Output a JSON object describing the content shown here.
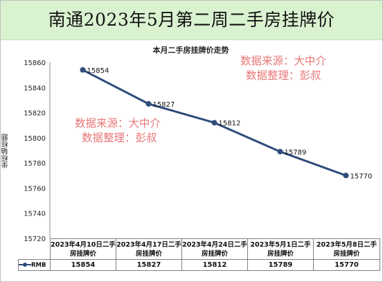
{
  "banner": {
    "title": "南通2023年5月第二周二手房挂牌价"
  },
  "watermark": {
    "line1": "数据来源：大中介",
    "line2": "数据整理：彭叔"
  },
  "chart_data": {
    "type": "line",
    "title": "本月二手房挂牌价走势",
    "ylabel": "坐标轴标题",
    "xlabel": "",
    "ylim": [
      15720,
      15860
    ],
    "ytick_step": 20,
    "yticks": [
      "15860",
      "15840",
      "15820",
      "15800",
      "15780",
      "15760",
      "15740",
      "15720"
    ],
    "grid": false,
    "legend": "data-table",
    "categories": [
      "2023年4月10日二手房挂牌价",
      "2023年4月17日二手房挂牌价",
      "2023年4月24日二手房挂牌价",
      "2023年5月1日二手房挂牌价",
      "2023年5月8日二手房挂牌价"
    ],
    "series": [
      {
        "name": "RMB",
        "values": [
          15854,
          15827,
          15812,
          15789,
          15770
        ]
      }
    ],
    "line_color": "#2f4c7a"
  }
}
